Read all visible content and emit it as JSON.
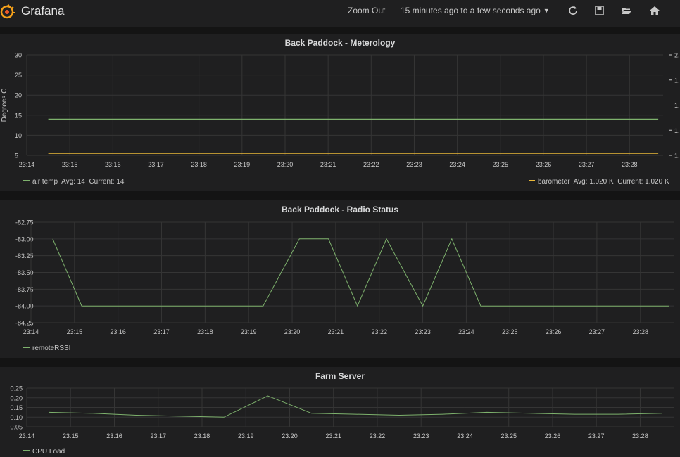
{
  "topbar": {
    "app_name": "Grafana",
    "zoom_out": "Zoom Out",
    "time_range": "15 minutes ago to a few seconds ago",
    "icons": [
      "refresh-icon",
      "save-icon",
      "folder-open-icon",
      "home-icon"
    ]
  },
  "colors": {
    "green": "#7eb26d",
    "yellow": "#eab839",
    "grid": "#353535",
    "axis": "#c8c8c8"
  },
  "panels": [
    {
      "title": "Back Paddock - Meterology",
      "legend_left": {
        "name": "air temp",
        "avg": "Avg: 14",
        "current": "Current: 14"
      },
      "legend_right": {
        "name": "barometer",
        "avg": "Avg: 1.020 K",
        "current": "Current: 1.020 K"
      },
      "ylabel": "Degrees C",
      "right_ticks": [
        "2.",
        "1.",
        "1.",
        "1.",
        "1."
      ]
    },
    {
      "title": "Back Paddock - Radio Status",
      "legend_left": {
        "name": "remoteRSSI"
      }
    },
    {
      "title": "Farm Server",
      "legend_left": {
        "name": "CPU Load"
      }
    }
  ],
  "chart_data": [
    {
      "type": "line",
      "title": "Back Paddock - Meterology",
      "ylabel": "Degrees C",
      "x_ticks": [
        "23:14",
        "23:15",
        "23:16",
        "23:17",
        "23:18",
        "23:19",
        "23:20",
        "23:21",
        "23:22",
        "23:23",
        "23:24",
        "23:25",
        "23:26",
        "23:27",
        "23:28"
      ],
      "y_ticks": [
        5,
        10,
        15,
        20,
        25,
        30
      ],
      "ylim": [
        5,
        30
      ],
      "grid": true,
      "legend_position": "bottom",
      "series": [
        {
          "name": "air temp",
          "color": "#7eb26d",
          "x": [
            "23:14:30",
            "23:28:40"
          ],
          "values": [
            14,
            14
          ]
        },
        {
          "name": "barometer",
          "color": "#eab839",
          "x": [
            "23:14:30",
            "23:28:40"
          ],
          "values": [
            1020,
            1020
          ],
          "axis": "right"
        }
      ]
    },
    {
      "type": "line",
      "title": "Back Paddock - Radio Status",
      "x_ticks": [
        "23:14",
        "23:15",
        "23:16",
        "23:17",
        "23:18",
        "23:19",
        "23:20",
        "23:21",
        "23:22",
        "23:23",
        "23:24",
        "23:25",
        "23:26",
        "23:27",
        "23:28"
      ],
      "y_ticks": [
        "-84.25",
        "-84.00",
        "-83.75",
        "-83.50",
        "-83.25",
        "-83.00",
        "-82.75"
      ],
      "ylim": [
        -84.25,
        -82.75
      ],
      "grid": true,
      "legend_position": "bottom",
      "series": [
        {
          "name": "remoteRSSI",
          "color": "#7eb26d",
          "x": [
            "23:14:30",
            "23:15:10",
            "23:19:20",
            "23:20:10",
            "23:20:50",
            "23:21:30",
            "23:22:10",
            "23:23:00",
            "23:23:40",
            "23:24:20",
            "23:28:40"
          ],
          "values": [
            -83.0,
            -84.0,
            -84.0,
            -83.0,
            -83.0,
            -84.0,
            -83.0,
            -84.0,
            -83.0,
            -84.0,
            -84.0
          ]
        }
      ]
    },
    {
      "type": "line",
      "title": "Farm Server",
      "x_ticks": [
        "23:14",
        "23:15",
        "23:16",
        "23:17",
        "23:18",
        "23:19",
        "23:20",
        "23:21",
        "23:22",
        "23:23",
        "23:24",
        "23:25",
        "23:26",
        "23:27",
        "23:28"
      ],
      "y_ticks": [
        "0.05",
        "0.10",
        "0.15",
        "0.20",
        "0.25"
      ],
      "ylim": [
        0.05,
        0.25
      ],
      "grid": true,
      "legend_position": "bottom",
      "series": [
        {
          "name": "CPU Load",
          "color": "#7eb26d",
          "x": [
            "23:14:30",
            "23:15:30",
            "23:16:30",
            "23:17:30",
            "23:18:30",
            "23:19:30",
            "23:20:30",
            "23:21:30",
            "23:22:30",
            "23:23:30",
            "23:24:30",
            "23:25:30",
            "23:26:30",
            "23:27:30",
            "23:28:30"
          ],
          "values": [
            0.125,
            0.12,
            0.11,
            0.105,
            0.1,
            0.21,
            0.12,
            0.115,
            0.11,
            0.115,
            0.125,
            0.12,
            0.115,
            0.115,
            0.12
          ]
        }
      ]
    }
  ]
}
